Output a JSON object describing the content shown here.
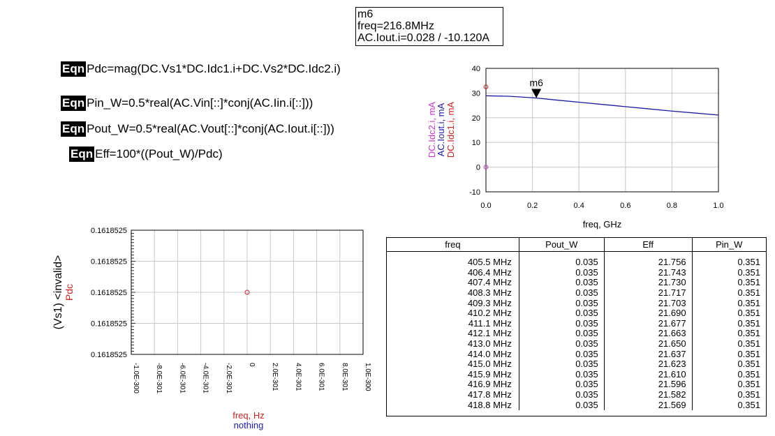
{
  "marker": {
    "name": "m6",
    "freq_line": "freq=216.8MHz",
    "value_line": "AC.Iout.i=0.028 / -10.120A"
  },
  "equations": {
    "tag": "Eqn",
    "pdc": "Pdc=mag(DC.Vs1*DC.Idc1.i+DC.Vs2*DC.Idc2.i)",
    "pin": "Pin_W=0.5*real(AC.Vin[::]*conj(AC.Iin.i[::]))",
    "pout": "Pout_W=0.5*real(AC.Vout[::]*conj(AC.Iout.i[::]))",
    "eff": "Eff=100*((Pout_W)/Pdc)"
  },
  "chart_data": [
    {
      "type": "line",
      "xlabel": "freq, GHz",
      "ylabels": [
        "DC.Idc2.i, mA",
        "AC.Iout.i, mA",
        "DC.Idc1.i, mA"
      ],
      "xlim": [
        0.0,
        1.0
      ],
      "ylim": [
        -10,
        40
      ],
      "x_ticks": [
        "0.0",
        "0.2",
        "0.4",
        "0.6",
        "0.8",
        "1.0"
      ],
      "y_ticks": [
        "40",
        "30",
        "20",
        "10",
        "0",
        "-10"
      ],
      "grid": true,
      "colors": {
        "ac_iout": "#1a1aa6",
        "dc_idc1": "#cc2222",
        "dc_idc2": "#cc33cc"
      },
      "series": [
        {
          "name": "AC.Iout.i, mA",
          "x": [
            0.0,
            0.1,
            0.2168,
            0.3,
            0.4,
            0.5,
            0.6,
            0.7,
            0.8,
            0.9,
            1.0
          ],
          "y": [
            28.9,
            28.7,
            28.0,
            27.2,
            26.3,
            25.4,
            24.5,
            23.6,
            22.7,
            21.9,
            21.1
          ]
        },
        {
          "name": "DC.Idc1.i, mA",
          "x": [
            0.0
          ],
          "y": [
            32.5
          ]
        },
        {
          "name": "DC.Idc2.i, mA",
          "x": [
            0.0
          ],
          "y": [
            0.0
          ]
        }
      ],
      "marker": {
        "label": "m6",
        "x": 0.2168,
        "y": 28.0
      }
    },
    {
      "type": "scatter",
      "xlabel": "freq, Hz",
      "xlabel2": "nothing",
      "ylabel": "Pdc",
      "ylabel2": "(Vs1) <invalid>",
      "x_ticks": [
        "-1.0E-300",
        "-8.0E-301",
        "-6.0E-301",
        "-4.0E-301",
        "-2.0E-301",
        "0",
        "2.0E-301",
        "4.0E-301",
        "6.0E-301",
        "8.0E-301",
        "1.0E-300"
      ],
      "y_ticks": [
        "0.1618525",
        "0.1618525",
        "0.1618525",
        "0.1618525",
        "0.1618525"
      ],
      "grid": true,
      "point_color": "#cc2222",
      "series": [
        {
          "name": "Pdc",
          "x": [
            0
          ],
          "y": [
            0.1618525
          ]
        }
      ]
    },
    {
      "type": "table",
      "columns": [
        "freq",
        "Pout_W",
        "Eff",
        "Pin_W"
      ],
      "rows": [
        [
          "405.5 MHz",
          "0.035",
          "21.756",
          "0.351"
        ],
        [
          "406.4 MHz",
          "0.035",
          "21.743",
          "0.351"
        ],
        [
          "407.4 MHz",
          "0.035",
          "21.730",
          "0.351"
        ],
        [
          "408.3 MHz",
          "0.035",
          "21.717",
          "0.351"
        ],
        [
          "409.3 MHz",
          "0.035",
          "21.703",
          "0.351"
        ],
        [
          "410.2 MHz",
          "0.035",
          "21.690",
          "0.351"
        ],
        [
          "411.1 MHz",
          "0.035",
          "21.677",
          "0.351"
        ],
        [
          "412.1 MHz",
          "0.035",
          "21.663",
          "0.351"
        ],
        [
          "413.0 MHz",
          "0.035",
          "21.650",
          "0.351"
        ],
        [
          "414.0 MHz",
          "0.035",
          "21.637",
          "0.351"
        ],
        [
          "415.0 MHz",
          "0.035",
          "21.623",
          "0.351"
        ],
        [
          "415.9 MHz",
          "0.035",
          "21.610",
          "0.351"
        ],
        [
          "416.9 MHz",
          "0.035",
          "21.596",
          "0.351"
        ],
        [
          "417.8 MHz",
          "0.035",
          "21.582",
          "0.351"
        ],
        [
          "418.8 MHz",
          "0.035",
          "21.569",
          "0.351"
        ]
      ]
    }
  ]
}
